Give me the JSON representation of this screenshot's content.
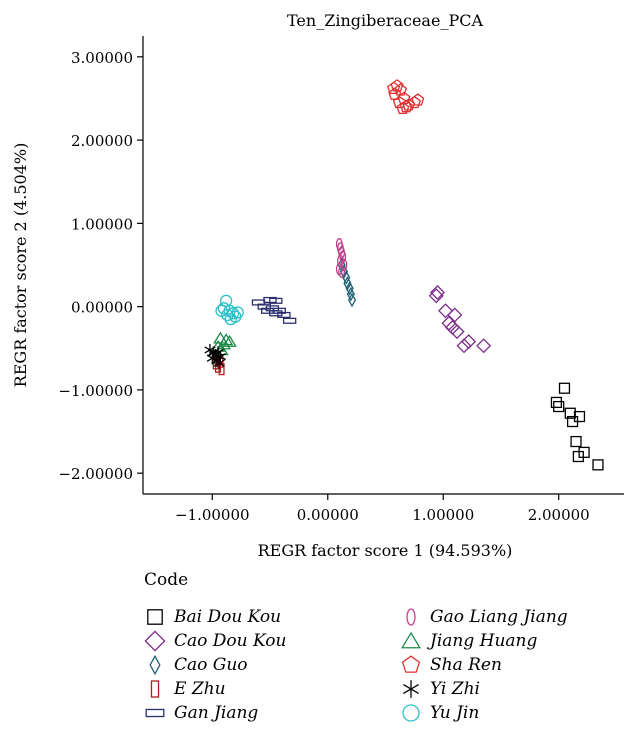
{
  "chart_data": {
    "type": "scatter",
    "title": "Ten_Zingiberaceae_PCA",
    "xlabel": "REGR factor score 1 (94.593%)",
    "ylabel": "REGR factor score 2 (4.504%)",
    "xlim": [
      -1.6,
      2.6
    ],
    "ylim": [
      -2.25,
      3.25
    ],
    "xticks": [
      -1.0,
      0.0,
      1.0,
      2.0
    ],
    "xtick_labels": [
      "−1.00000",
      "0.00000",
      "1.00000",
      "2.00000"
    ],
    "yticks": [
      3.0,
      2.0,
      1.0,
      0.0,
      -1.0,
      -2.0
    ],
    "ytick_labels": [
      "3.00000",
      "2.00000",
      "1.00000",
      "0.00000",
      "−1.00000",
      "−2.00000"
    ],
    "grid": false,
    "legend_title": "Code",
    "legend_placement": "bottom",
    "series": [
      {
        "name": "Bai Dou Kou",
        "marker": "square",
        "color": "#000000",
        "points": [
          [
            2.05,
            -0.98
          ],
          [
            1.98,
            -1.15
          ],
          [
            2.0,
            -1.2
          ],
          [
            2.1,
            -1.28
          ],
          [
            2.12,
            -1.38
          ],
          [
            2.18,
            -1.32
          ],
          [
            2.15,
            -1.62
          ],
          [
            2.22,
            -1.75
          ],
          [
            2.17,
            -1.8
          ],
          [
            2.34,
            -1.9
          ]
        ]
      },
      {
        "name": "Cao Dou Kou",
        "marker": "diamond",
        "color": "#7b2d8b",
        "points": [
          [
            0.95,
            0.17
          ],
          [
            0.94,
            0.13
          ],
          [
            1.02,
            -0.05
          ],
          [
            1.1,
            -0.1
          ],
          [
            1.05,
            -0.2
          ],
          [
            1.08,
            -0.25
          ],
          [
            1.12,
            -0.3
          ],
          [
            1.22,
            -0.42
          ],
          [
            1.18,
            -0.47
          ],
          [
            1.35,
            -0.47
          ]
        ]
      },
      {
        "name": "Cao Guo",
        "marker": "thin-diamond",
        "color": "#1f5f73",
        "points": [
          [
            0.12,
            0.5
          ],
          [
            0.14,
            0.42
          ],
          [
            0.16,
            0.35
          ],
          [
            0.17,
            0.28
          ],
          [
            0.19,
            0.22
          ],
          [
            0.2,
            0.15
          ],
          [
            0.21,
            0.08
          ]
        ]
      },
      {
        "name": "E Zhu",
        "marker": "tall-rect",
        "color": "#b01e1e",
        "points": [
          [
            -0.97,
            -0.68
          ],
          [
            -0.95,
            -0.72
          ],
          [
            -0.92,
            -0.75
          ],
          [
            -0.96,
            -0.62
          ],
          [
            -0.93,
            -0.66
          ]
        ]
      },
      {
        "name": "Gan Jiang",
        "marker": "wide-rect",
        "color": "#2a2f6e",
        "points": [
          [
            -0.6,
            0.05
          ],
          [
            -0.5,
            0.08
          ],
          [
            -0.45,
            0.07
          ],
          [
            -0.55,
            0.0
          ],
          [
            -0.48,
            -0.02
          ],
          [
            -0.52,
            -0.05
          ],
          [
            -0.42,
            -0.05
          ],
          [
            -0.38,
            -0.1
          ],
          [
            -0.33,
            -0.17
          ],
          [
            -0.45,
            -0.08
          ]
        ]
      },
      {
        "name": "Gao Liang Jiang",
        "marker": "oval",
        "color": "#c0408a",
        "points": [
          [
            0.1,
            0.75
          ],
          [
            0.11,
            0.7
          ],
          [
            0.12,
            0.65
          ],
          [
            0.13,
            0.6
          ],
          [
            0.11,
            0.55
          ],
          [
            0.14,
            0.5
          ],
          [
            0.1,
            0.45
          ],
          [
            0.12,
            0.42
          ]
        ]
      },
      {
        "name": "Jiang Huang",
        "marker": "triangle",
        "color": "#1e8a4a",
        "points": [
          [
            -0.93,
            -0.38
          ],
          [
            -0.88,
            -0.4
          ],
          [
            -0.85,
            -0.42
          ],
          [
            -0.9,
            -0.45
          ],
          [
            -0.95,
            -0.48
          ],
          [
            -0.92,
            -0.52
          ]
        ]
      },
      {
        "name": "Sha Ren",
        "marker": "pentagon",
        "color": "#e03030",
        "points": [
          [
            0.6,
            2.65
          ],
          [
            0.57,
            2.62
          ],
          [
            0.63,
            2.6
          ],
          [
            0.58,
            2.55
          ],
          [
            0.66,
            2.5
          ],
          [
            0.62,
            2.45
          ],
          [
            0.7,
            2.42
          ],
          [
            0.75,
            2.45
          ],
          [
            0.78,
            2.48
          ],
          [
            0.68,
            2.4
          ],
          [
            0.65,
            2.38
          ]
        ]
      },
      {
        "name": "Yi Zhi",
        "marker": "asterisk",
        "color": "#000000",
        "points": [
          [
            -1.02,
            -0.52
          ],
          [
            -0.99,
            -0.55
          ],
          [
            -0.97,
            -0.58
          ],
          [
            -0.95,
            -0.55
          ],
          [
            -0.93,
            -0.6
          ],
          [
            -1.0,
            -0.62
          ],
          [
            -0.96,
            -0.65
          ],
          [
            -0.94,
            -0.68
          ]
        ]
      },
      {
        "name": "Yu Jin",
        "marker": "circle",
        "color": "#2cc0c8",
        "points": [
          [
            -0.88,
            0.07
          ],
          [
            -0.9,
            -0.02
          ],
          [
            -0.85,
            -0.05
          ],
          [
            -0.82,
            -0.08
          ],
          [
            -0.87,
            -0.1
          ],
          [
            -0.8,
            -0.12
          ],
          [
            -0.84,
            -0.15
          ],
          [
            -0.92,
            -0.05
          ],
          [
            -0.78,
            -0.07
          ]
        ]
      }
    ]
  }
}
